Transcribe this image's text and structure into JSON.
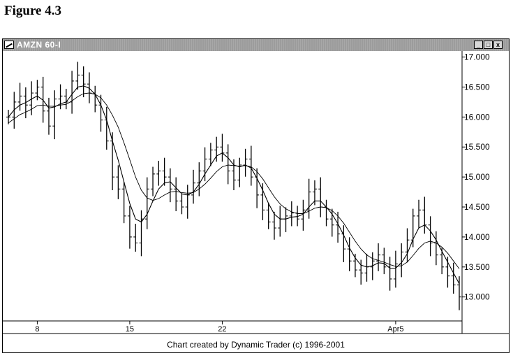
{
  "figure_title": "Figure 4.3",
  "window": {
    "title": "AMZN 60-I",
    "controls": {
      "minimize": "_",
      "maximize": "□",
      "close": "x"
    }
  },
  "credit": "Chart created by Dynamic Trader (c) 1996-2001",
  "colors": {
    "bars": "#000000",
    "titlebar": "#9c9c9c",
    "background": "#ffffff"
  },
  "chart_data": {
    "type": "line",
    "title": "",
    "xlabel": "",
    "ylabel": "",
    "ylim": [
      12.6,
      17.1
    ],
    "y_ticks": [
      "17.000",
      "16.500",
      "16.000",
      "15.500",
      "15.000",
      "14.500",
      "14.000",
      "13.500",
      "13.000"
    ],
    "y_tick_values": [
      17.0,
      16.5,
      16.0,
      15.5,
      15.0,
      14.5,
      14.0,
      13.5,
      13.0
    ],
    "x_ticks": [
      {
        "label": "8",
        "bar": 5
      },
      {
        "label": "15",
        "bar": 21
      },
      {
        "label": "22",
        "bar": 37
      },
      {
        "label": "Apr5",
        "bar": 67
      }
    ],
    "grid": false,
    "price": [
      16.0,
      16.25,
      16.35,
      16.2,
      16.4,
      16.5,
      16.1,
      15.85,
      16.3,
      16.35,
      16.25,
      16.6,
      16.7,
      16.55,
      16.4,
      16.2,
      15.95,
      15.6,
      15.0,
      14.8,
      14.35,
      14.0,
      13.9,
      14.3,
      14.8,
      15.05,
      15.1,
      15.0,
      14.8,
      14.6,
      14.5,
      14.7,
      14.9,
      15.1,
      15.3,
      15.45,
      15.5,
      15.4,
      15.1,
      14.95,
      15.2,
      15.3,
      15.0,
      14.7,
      14.45,
      14.25,
      14.15,
      14.3,
      14.35,
      14.4,
      14.3,
      14.45,
      14.75,
      14.8,
      14.5,
      14.3,
      14.2,
      14.05,
      13.8,
      13.6,
      13.45,
      13.4,
      13.5,
      13.6,
      13.7,
      13.5,
      13.3,
      13.55,
      13.75,
      13.95,
      14.35,
      14.45,
      14.2,
      13.9,
      13.7,
      13.5,
      13.35,
      13.2,
      13.0
    ],
    "series": [
      {
        "values": [
          16.0,
          16.12,
          16.2,
          16.24,
          16.3,
          16.35,
          16.28,
          16.15,
          16.17,
          16.22,
          16.25,
          16.38,
          16.5,
          16.52,
          16.48,
          16.38,
          16.2,
          15.95,
          15.6,
          15.28,
          14.92,
          14.56,
          14.3,
          14.25,
          14.38,
          14.6,
          14.8,
          14.9,
          14.92,
          14.82,
          14.72,
          14.7,
          14.75,
          14.88,
          15.05,
          15.2,
          15.35,
          15.4,
          15.32,
          15.2,
          15.17,
          15.2,
          15.15,
          14.98,
          14.78,
          14.56,
          14.38,
          14.3,
          14.3,
          14.33,
          14.34,
          14.38,
          14.5,
          14.6,
          14.6,
          14.5,
          14.38,
          14.22,
          14.03,
          13.82,
          13.65,
          13.53,
          13.5,
          13.52,
          13.57,
          13.56,
          13.48,
          13.48,
          13.57,
          13.72,
          13.96,
          14.15,
          14.2,
          14.1,
          13.95,
          13.76,
          13.58,
          13.4,
          13.22
        ]
      },
      {
        "values": [
          15.9,
          15.97,
          16.04,
          16.08,
          16.13,
          16.19,
          16.2,
          16.18,
          16.18,
          16.2,
          16.21,
          16.27,
          16.34,
          16.39,
          16.4,
          16.38,
          16.32,
          16.2,
          16.03,
          15.83,
          15.57,
          15.29,
          15.0,
          14.78,
          14.65,
          14.61,
          14.64,
          14.7,
          14.75,
          14.76,
          14.74,
          14.73,
          14.74,
          14.8,
          14.88,
          14.98,
          15.09,
          15.17,
          15.2,
          15.19,
          15.18,
          15.19,
          15.17,
          15.09,
          14.97,
          14.82,
          14.67,
          14.55,
          14.47,
          14.42,
          14.39,
          14.39,
          14.43,
          14.48,
          14.5,
          14.49,
          14.44,
          14.35,
          14.23,
          14.08,
          13.93,
          13.8,
          13.7,
          13.64,
          13.61,
          13.58,
          13.54,
          13.51,
          13.52,
          13.58,
          13.69,
          13.81,
          13.9,
          13.93,
          13.9,
          13.83,
          13.73,
          13.6,
          13.47
        ]
      }
    ]
  }
}
